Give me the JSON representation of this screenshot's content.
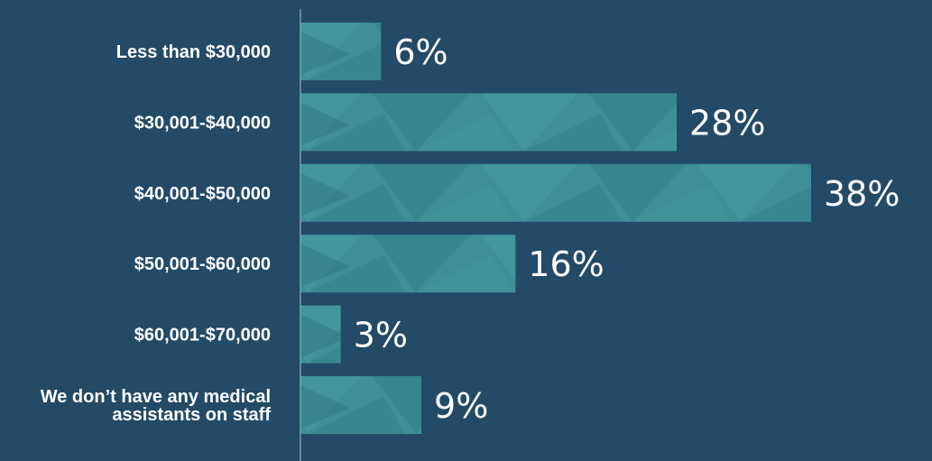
{
  "chart_data": {
    "type": "bar",
    "orientation": "horizontal",
    "categories": [
      [
        "Less than $30,000"
      ],
      [
        "$30,001-$40,000"
      ],
      [
        "$40,001-$50,000"
      ],
      [
        "$50,001-$60,000"
      ],
      [
        "$60,001-$70,000"
      ],
      [
        "We don’t have any medical",
        "assistants on staff"
      ]
    ],
    "values": [
      6,
      28,
      38,
      16,
      3,
      9
    ],
    "value_labels": [
      "6%",
      "28%",
      "38%",
      "16%",
      "3%",
      "9%"
    ],
    "xlim": [
      0,
      38
    ],
    "grid": false,
    "legend": "none",
    "colors": {
      "background": "#234a66",
      "bar": "#3e8f96",
      "bar_facet": "#4ba3a8",
      "bar_shadow": "#2f7680",
      "text": "#ffffff",
      "axis": "#8fb0c6"
    }
  }
}
